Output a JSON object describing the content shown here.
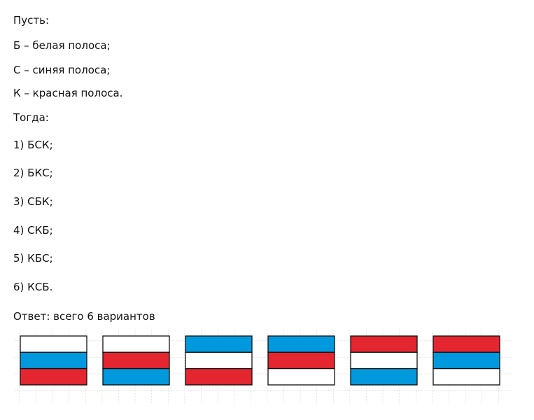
{
  "lines": [
    "Пусть:",
    "Б – белая полоса;",
    "С – синяя полоса;",
    "К – красная полоса.",
    "Тогда:",
    "1) БСК;",
    "2) БКС;",
    "3) СБК;",
    "4) СКБ;",
    "5) КБС;",
    "6) КСБ.",
    "Ответ: всего 6 вариантов"
  ],
  "flags": [
    [
      "#ffffff",
      "#0099dd",
      "#e32630"
    ],
    [
      "#ffffff",
      "#e32630",
      "#0099dd"
    ],
    [
      "#0099dd",
      "#ffffff",
      "#e32630"
    ],
    [
      "#0099dd",
      "#e32630",
      "#ffffff"
    ],
    [
      "#e32630",
      "#ffffff",
      "#0099dd"
    ],
    [
      "#e32630",
      "#0099dd",
      "#ffffff"
    ]
  ]
}
